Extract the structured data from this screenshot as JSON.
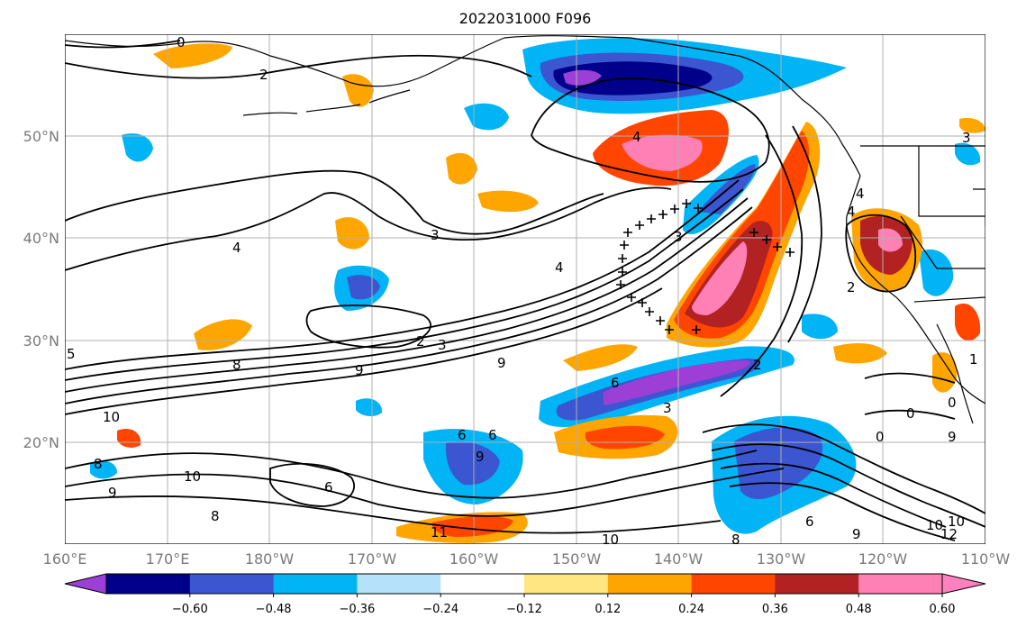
{
  "title": "2022031000 F096",
  "map": {
    "lat_ticks": [
      "50°N",
      "40°N",
      "30°N",
      "20°N"
    ],
    "lon_ticks": [
      "160°E",
      "170°E",
      "180°W",
      "170°W",
      "160°W",
      "150°W",
      "140°W",
      "130°W",
      "120°W",
      "110°W"
    ],
    "grid": true
  },
  "colorbar": {
    "levels": [
      "−0.60",
      "−0.48",
      "−0.36",
      "−0.24",
      "−0.12",
      "0.12",
      "0.24",
      "0.36",
      "0.48",
      "0.60"
    ],
    "colors": [
      "#9b3fd6",
      "#00008b",
      "#3c55d0",
      "#00b4f5",
      "#b4e2fa",
      "#ffffff",
      "#ffe680",
      "#ffa500",
      "#ff4500",
      "#b22222",
      "#ff80b4",
      "#ff80c0"
    ]
  },
  "contour_labels": [
    {
      "text": "0"
    },
    {
      "text": "2"
    },
    {
      "text": "3"
    },
    {
      "text": "4"
    },
    {
      "text": "5"
    },
    {
      "text": "8"
    },
    {
      "text": "9"
    },
    {
      "text": "10"
    },
    {
      "text": "2"
    },
    {
      "text": "3"
    },
    {
      "text": "9"
    },
    {
      "text": "4"
    },
    {
      "text": "4"
    },
    {
      "text": "3"
    },
    {
      "text": "2"
    },
    {
      "text": "6"
    },
    {
      "text": "3"
    },
    {
      "text": "6"
    },
    {
      "text": "9"
    },
    {
      "text": "6"
    },
    {
      "text": "10"
    },
    {
      "text": "8"
    },
    {
      "text": "9"
    },
    {
      "text": "6"
    },
    {
      "text": "11"
    },
    {
      "text": "10"
    },
    {
      "text": "8"
    },
    {
      "text": "6"
    },
    {
      "text": "8"
    },
    {
      "text": "9"
    },
    {
      "text": "10"
    },
    {
      "text": "12"
    },
    {
      "text": "4"
    },
    {
      "text": "4"
    },
    {
      "text": "2"
    },
    {
      "text": "0"
    },
    {
      "text": "0"
    },
    {
      "text": "0"
    },
    {
      "text": "1"
    },
    {
      "text": "3"
    },
    {
      "text": "10"
    },
    {
      "text": "9"
    }
  ]
}
